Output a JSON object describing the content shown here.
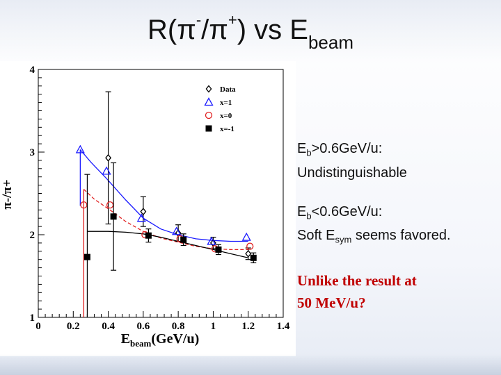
{
  "slide": {
    "title_main": "R(π",
    "title_sup1": "-",
    "title_mid": "/π",
    "title_sup2": "+",
    "title_end": ") vs E",
    "title_sub": "beam"
  },
  "bullets": {
    "b1_e": "E",
    "b1_sub": "b",
    "b1_rest": ">0.6GeV/u:",
    "b1_line2": "Undistinguishable",
    "b2_e": "E",
    "b2_sub": "b",
    "b2_rest": "<0.6GeV/u:",
    "b2_line2_pre": "Soft E",
    "b2_line2_sub": "sym",
    "b2_line2_post": " seems favored.",
    "red_line1": "Unlike the result at",
    "red_line2": "50 MeV/u?"
  },
  "colors": {
    "data": "#000000",
    "x1": "#1a1aff",
    "x0": "#e02020",
    "xm1": "#000000"
  },
  "chart_data": {
    "type": "scatter",
    "xlabel_main": "E",
    "xlabel_sub": "beam",
    "xlabel_rest": "(GeV/u)",
    "ylabel": "π-/π+",
    "xlim": [
      0,
      1.4
    ],
    "ylim": [
      1,
      4
    ],
    "xticks": [
      "0",
      "0.2",
      "0.4",
      "0.6",
      "0.8",
      "1",
      "1.2",
      "1.4"
    ],
    "yticks": [
      "1",
      "2",
      "3",
      "4"
    ],
    "legend_position": "top-right",
    "series": [
      {
        "name": "Data",
        "marker": "diamond",
        "x": [
          0.4,
          0.6,
          0.8,
          1.0,
          1.2
        ],
        "y": [
          2.93,
          2.28,
          2.02,
          1.9,
          1.77
        ],
        "err": [
          0.8,
          0.18,
          0.1,
          0.07,
          0.07
        ]
      },
      {
        "name": "x=1",
        "marker": "triangle",
        "x": [
          0.24,
          0.39,
          0.59,
          0.79,
          0.99,
          1.19
        ],
        "y": [
          3.03,
          2.77,
          2.2,
          2.04,
          1.92,
          1.97
        ],
        "curve": [
          [
            0.24,
            3.03
          ],
          [
            0.3,
            2.88
          ],
          [
            0.39,
            2.68
          ],
          [
            0.5,
            2.42
          ],
          [
            0.6,
            2.2
          ],
          [
            0.7,
            2.07
          ],
          [
            0.8,
            2.0
          ],
          [
            0.9,
            1.95
          ],
          [
            1.0,
            1.93
          ],
          [
            1.1,
            1.92
          ],
          [
            1.2,
            1.92
          ]
        ]
      },
      {
        "name": "x=0",
        "marker": "circle",
        "x": [
          0.26,
          0.41,
          0.61,
          0.81,
          1.01,
          1.21
        ],
        "y": [
          2.36,
          2.36,
          2.0,
          1.95,
          1.83,
          1.86
        ],
        "curve": [
          [
            0.26,
            2.55
          ],
          [
            0.32,
            2.43
          ],
          [
            0.41,
            2.3
          ],
          [
            0.5,
            2.16
          ],
          [
            0.6,
            2.04
          ],
          [
            0.7,
            1.96
          ],
          [
            0.8,
            1.91
          ],
          [
            0.9,
            1.86
          ],
          [
            1.0,
            1.83
          ],
          [
            1.1,
            1.82
          ],
          [
            1.2,
            1.82
          ]
        ]
      },
      {
        "name": "x=-1",
        "marker": "square",
        "x": [
          0.28,
          0.43,
          0.63,
          0.83,
          1.03,
          1.23
        ],
        "y": [
          1.73,
          2.22,
          1.99,
          1.94,
          1.82,
          1.72
        ],
        "err": [
          1.0,
          0.65,
          0.08,
          0.07,
          0.06,
          0.06
        ],
        "curve": [
          [
            0.28,
            2.04
          ],
          [
            0.4,
            2.04
          ],
          [
            0.5,
            2.03
          ],
          [
            0.6,
            2.01
          ],
          [
            0.7,
            1.97
          ],
          [
            0.8,
            1.92
          ],
          [
            0.9,
            1.87
          ],
          [
            1.0,
            1.82
          ],
          [
            1.1,
            1.77
          ],
          [
            1.2,
            1.72
          ]
        ]
      }
    ]
  }
}
